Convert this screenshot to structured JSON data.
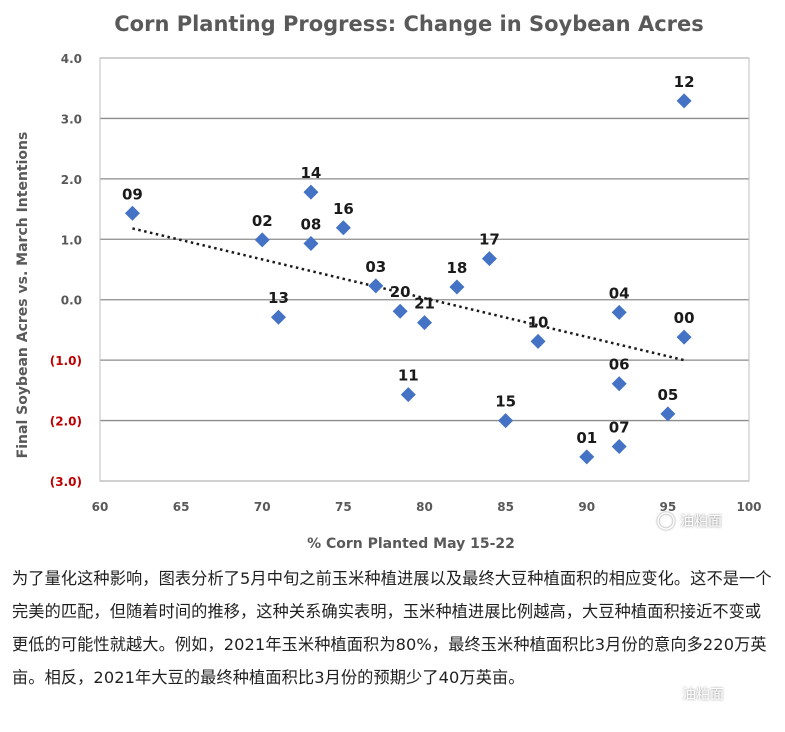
{
  "chart_data": {
    "type": "scatter",
    "title": "Corn Planting Progress: Change in Soybean Acres",
    "xlabel": "% Corn Planted May 15-22",
    "ylabel": "Final Soybean Acres vs. March Intentions",
    "xlim": [
      60,
      100
    ],
    "ylim": [
      -3.0,
      4.0
    ],
    "x_ticks": [
      60,
      65,
      70,
      75,
      80,
      85,
      90,
      95,
      100
    ],
    "x_tick_labels": [
      "60",
      "65",
      "70",
      "75",
      "80",
      "85",
      "90",
      "95",
      "100"
    ],
    "y_ticks": [
      4.0,
      3.0,
      2.0,
      1.0,
      0.0,
      -1.0,
      -2.0,
      -3.0
    ],
    "y_tick_labels": [
      "4.0",
      "3.0",
      "2.0",
      "1.0",
      "0.0",
      "(1.0)",
      "(2.0)",
      "(3.0)"
    ],
    "grid": "horizontal",
    "marker_color": "#4472c4",
    "trendline": {
      "style": "dotted",
      "x": [
        62,
        96
      ],
      "y": [
        1.18,
        -1.0
      ]
    },
    "points": [
      {
        "label": "09",
        "x": 62,
        "y": 1.43
      },
      {
        "label": "02",
        "x": 70,
        "y": 0.99
      },
      {
        "label": "13",
        "x": 71,
        "y": -0.29
      },
      {
        "label": "14",
        "x": 73,
        "y": 1.78
      },
      {
        "label": "08",
        "x": 73,
        "y": 0.93
      },
      {
        "label": "16",
        "x": 75,
        "y": 1.19
      },
      {
        "label": "03",
        "x": 77,
        "y": 0.23
      },
      {
        "label": "20",
        "x": 78.5,
        "y": -0.19
      },
      {
        "label": "11",
        "x": 79,
        "y": -1.57
      },
      {
        "label": "21",
        "x": 80,
        "y": -0.38
      },
      {
        "label": "18",
        "x": 82,
        "y": 0.21
      },
      {
        "label": "17",
        "x": 84,
        "y": 0.68
      },
      {
        "label": "15",
        "x": 85,
        "y": -2.0
      },
      {
        "label": "10",
        "x": 87,
        "y": -0.69
      },
      {
        "label": "01",
        "x": 90,
        "y": -2.6
      },
      {
        "label": "04",
        "x": 92,
        "y": -0.21
      },
      {
        "label": "06",
        "x": 92,
        "y": -1.39
      },
      {
        "label": "07",
        "x": 92,
        "y": -2.43
      },
      {
        "label": "05",
        "x": 95,
        "y": -1.89
      },
      {
        "label": "00",
        "x": 96,
        "y": -0.62
      },
      {
        "label": "12",
        "x": 96,
        "y": 3.29
      }
    ]
  },
  "watermark": "油粕面",
  "caption": "为了量化这种影响，图表分析了5月中旬之前玉米种植进展以及最终大豆种植面积的相应变化。这不是一个完美的匹配，但随着时间的推移，这种关系确实表明，玉米种植进展比例越高，大豆种植面积接近不变或更低的可能性就越大。例如，2021年玉米种植面积为80%，最终玉米种植面积比3月份的意向多220万英亩。相反，2021年大豆的最终种植面积比3月份的预期少了40万英亩。"
}
